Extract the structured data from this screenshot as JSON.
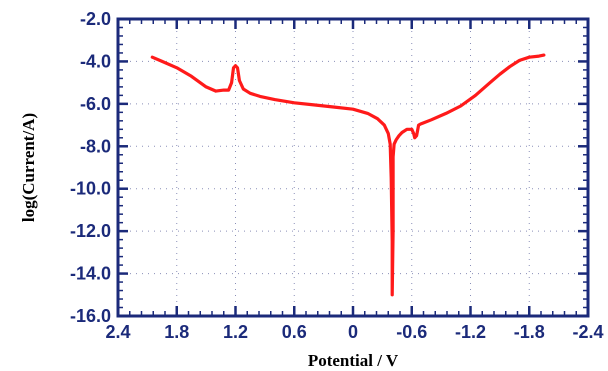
{
  "chart_data": {
    "type": "line",
    "title": "",
    "xlabel": "Potential / V",
    "ylabel": "log(Current/A)",
    "xlim": [
      2.4,
      -2.4
    ],
    "ylim": [
      -16.0,
      -2.0
    ],
    "x_reversed": true,
    "x_ticks": [
      2.4,
      1.8,
      1.2,
      0.6,
      0,
      -0.6,
      -1.2,
      -1.8,
      -2.4
    ],
    "x_tick_labels": [
      "2.4",
      "1.8",
      "1.2",
      "0.6",
      "0",
      "-0.6",
      "-1.2",
      "-1.8",
      "-2.4"
    ],
    "y_ticks": [
      -2.0,
      -4.0,
      -6.0,
      -8.0,
      -10.0,
      -12.0,
      -14.0,
      -16.0
    ],
    "y_tick_labels": [
      "-2.0",
      "-4.0",
      "-6.0",
      "-8.0",
      "-10.0",
      "-12.0",
      "-14.0",
      "-16.0"
    ],
    "grid": true,
    "series": [
      {
        "color": "#ff1a1a",
        "x": [
          2.05,
          1.95,
          1.8,
          1.65,
          1.5,
          1.4,
          1.32,
          1.27,
          1.24,
          1.22,
          1.2,
          1.18,
          1.16,
          1.12,
          1.05,
          0.95,
          0.8,
          0.6,
          0.4,
          0.2,
          0.0,
          -0.15,
          -0.25,
          -0.32,
          -0.36,
          -0.38,
          -0.39,
          -0.4,
          -0.4,
          -0.41,
          -0.41,
          -0.42,
          -0.44,
          -0.47,
          -0.5,
          -0.55,
          -0.6,
          -0.62,
          -0.63,
          -0.65,
          -0.67,
          -0.69,
          -0.72,
          -0.8,
          -0.95,
          -1.1,
          -1.25,
          -1.4,
          -1.5,
          -1.6,
          -1.7,
          -1.8,
          -1.9,
          -1.95
        ],
        "y": [
          -3.8,
          -4.0,
          -4.3,
          -4.7,
          -5.2,
          -5.4,
          -5.35,
          -5.35,
          -5.0,
          -4.3,
          -4.2,
          -4.3,
          -4.9,
          -5.3,
          -5.5,
          -5.65,
          -5.8,
          -5.95,
          -6.05,
          -6.15,
          -6.25,
          -6.45,
          -6.7,
          -7.0,
          -7.4,
          -7.9,
          -9.5,
          -12.5,
          -15.0,
          -12.0,
          -8.5,
          -7.9,
          -7.7,
          -7.5,
          -7.35,
          -7.2,
          -7.2,
          -7.4,
          -7.6,
          -7.5,
          -7.0,
          -6.95,
          -6.9,
          -6.75,
          -6.45,
          -6.1,
          -5.6,
          -5.0,
          -4.6,
          -4.25,
          -3.95,
          -3.8,
          -3.75,
          -3.7
        ]
      }
    ]
  }
}
